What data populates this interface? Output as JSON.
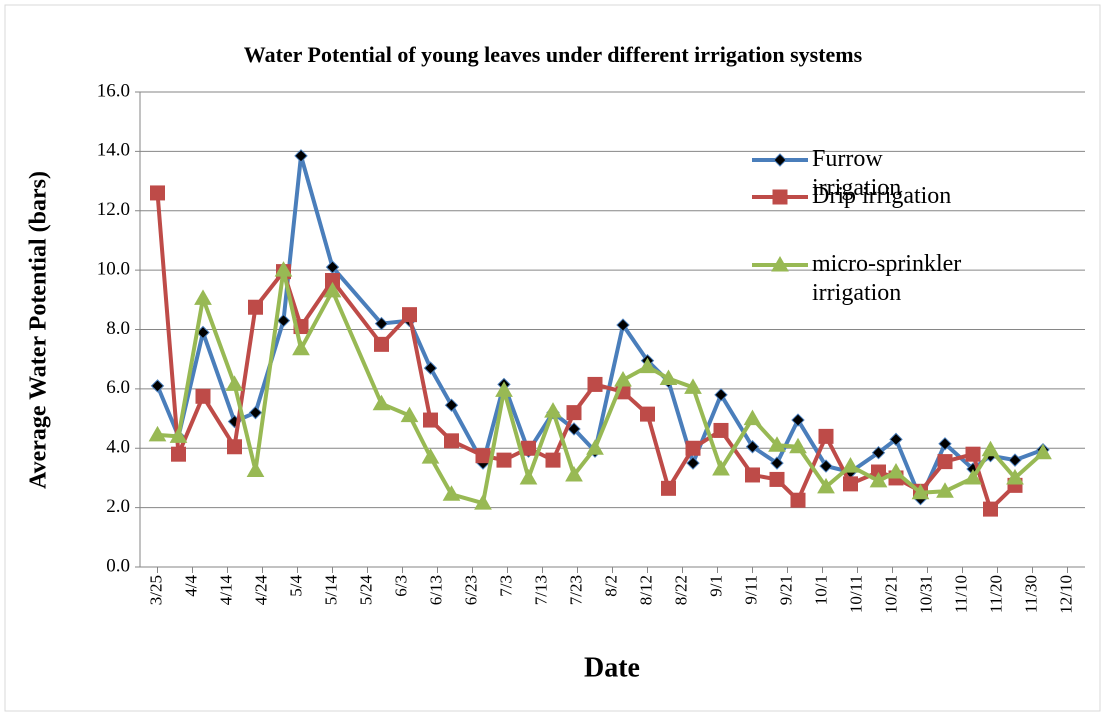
{
  "chart_data": {
    "type": "line",
    "title": "Water Potential of young leaves under different irrigation systems",
    "xlabel": "Date",
    "ylabel": "Average Water Potential (bars)",
    "x": [
      "3/25",
      "3/31",
      "4/7",
      "4/16",
      "4/22",
      "4/30",
      "5/5",
      "5/14",
      "5/28",
      "6/5",
      "6/11",
      "6/17",
      "6/26",
      "7/2",
      "7/9",
      "7/16",
      "7/22",
      "7/28",
      "8/5",
      "8/12",
      "8/18",
      "8/25",
      "9/2",
      "9/11",
      "9/18",
      "9/24",
      "10/2",
      "10/9",
      "10/17",
      "10/22",
      "10/29",
      "11/5",
      "11/13",
      "11/18",
      "11/25",
      "12/3"
    ],
    "series": [
      {
        "name": "Furrow irrigation",
        "color": "#4a7ebb",
        "marker": "diamond",
        "values": [
          6.1,
          4.4,
          7.9,
          4.9,
          5.2,
          8.3,
          13.85,
          10.1,
          8.2,
          8.3,
          6.7,
          5.45,
          3.5,
          6.15,
          3.9,
          5.2,
          4.65,
          3.9,
          8.15,
          6.95,
          6.25,
          3.5,
          5.8,
          4.05,
          3.5,
          4.95,
          3.4,
          3.2,
          3.85,
          4.3,
          2.3,
          4.15,
          3.3,
          3.75,
          3.6,
          3.95
        ]
      },
      {
        "name": "Drip irrigation",
        "color": "#be4b48",
        "marker": "square",
        "values": [
          12.6,
          3.8,
          5.75,
          4.05,
          8.75,
          9.95,
          8.1,
          9.65,
          7.5,
          8.5,
          4.95,
          4.25,
          3.75,
          3.6,
          4.0,
          3.6,
          5.2,
          6.15,
          5.9,
          5.15,
          2.65,
          4.0,
          4.6,
          3.1,
          2.95,
          2.25,
          4.4,
          2.8,
          3.2,
          3.0,
          2.55,
          3.55,
          3.8,
          1.95,
          2.75,
          null
        ]
      },
      {
        "name": "micro-sprinkler irrigation",
        "color": "#98b954",
        "marker": "triangle",
        "values": [
          4.45,
          4.4,
          9.05,
          6.15,
          3.25,
          10.0,
          7.35,
          9.3,
          5.5,
          5.1,
          3.7,
          2.45,
          2.15,
          5.95,
          3.0,
          5.25,
          3.1,
          4.0,
          6.3,
          6.75,
          6.35,
          6.05,
          3.3,
          5.0,
          4.1,
          4.05,
          2.7,
          3.4,
          2.9,
          3.2,
          2.5,
          2.55,
          3.0,
          3.95,
          3.0,
          3.85
        ]
      }
    ],
    "xlim": [
      "3/20",
      "12/15"
    ],
    "xticks": [
      "3/25",
      "4/4",
      "4/14",
      "4/24",
      "5/4",
      "5/14",
      "5/24",
      "6/3",
      "6/13",
      "6/23",
      "7/3",
      "7/13",
      "7/23",
      "8/2",
      "8/12",
      "8/22",
      "9/1",
      "9/11",
      "9/21",
      "10/1",
      "10/11",
      "10/21",
      "10/31",
      "11/10",
      "11/20",
      "11/30",
      "12/10"
    ],
    "ylim": [
      0,
      16
    ],
    "yticks": [
      {
        "value": 0,
        "label": "0.0"
      },
      {
        "value": 2,
        "label": "2.0"
      },
      {
        "value": 4,
        "label": "4.0"
      },
      {
        "value": 6,
        "label": "6.0"
      },
      {
        "value": 8,
        "label": "8.0"
      },
      {
        "value": 10,
        "label": "10.0"
      },
      {
        "value": 12,
        "label": "12.0"
      },
      {
        "value": 14,
        "label": "14.0"
      },
      {
        "value": 16,
        "label": "16.0"
      }
    ],
    "grid": true,
    "legend": "upper right"
  }
}
